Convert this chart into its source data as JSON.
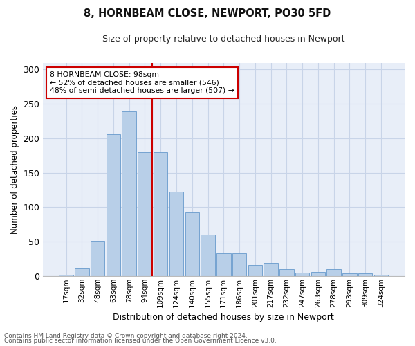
{
  "title": "8, HORNBEAM CLOSE, NEWPORT, PO30 5FD",
  "subtitle": "Size of property relative to detached houses in Newport",
  "xlabel": "Distribution of detached houses by size in Newport",
  "ylabel": "Number of detached properties",
  "categories": [
    "17sqm",
    "32sqm",
    "48sqm",
    "63sqm",
    "78sqm",
    "94sqm",
    "109sqm",
    "124sqm",
    "140sqm",
    "155sqm",
    "171sqm",
    "186sqm",
    "201sqm",
    "217sqm",
    "232sqm",
    "247sqm",
    "263sqm",
    "278sqm",
    "293sqm",
    "309sqm",
    "324sqm"
  ],
  "values": [
    2,
    11,
    51,
    206,
    239,
    180,
    180,
    122,
    92,
    60,
    33,
    33,
    16,
    19,
    10,
    5,
    6,
    10,
    4,
    4,
    2
  ],
  "bar_color": "#b8cfe8",
  "bar_edge_color": "#6699cc",
  "vline_color": "#cc0000",
  "vline_x_index": 5,
  "annotation_text": "8 HORNBEAM CLOSE: 98sqm\n← 52% of detached houses are smaller (546)\n48% of semi-detached houses are larger (507) →",
  "annotation_box_color": "#ffffff",
  "annotation_box_edge_color": "#cc0000",
  "grid_color": "#c8d4e8",
  "background_color": "#e8eef8",
  "ylim": [
    0,
    310
  ],
  "yticks": [
    0,
    50,
    100,
    150,
    200,
    250,
    300
  ],
  "footer1": "Contains HM Land Registry data © Crown copyright and database right 2024.",
  "footer2": "Contains public sector information licensed under the Open Government Licence v3.0."
}
